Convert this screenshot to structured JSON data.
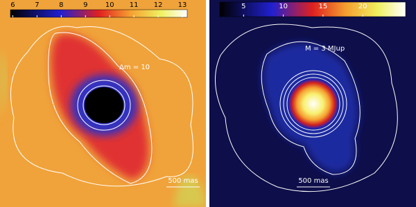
{
  "chart_data": [
    {
      "type": "image",
      "clim": [
        5.9,
        13.2
      ],
      "cticks": [
        6,
        7,
        8,
        9,
        10,
        11,
        12,
        13
      ],
      "annotation": "Δm = 10",
      "scale_label": "500 mas"
    },
    {
      "type": "image",
      "clim": [
        2,
        25.4
      ],
      "cticks": [
        5,
        10,
        15,
        20
      ],
      "annotation": "M = 3 MJup",
      "scale_label": "500 mas"
    }
  ]
}
